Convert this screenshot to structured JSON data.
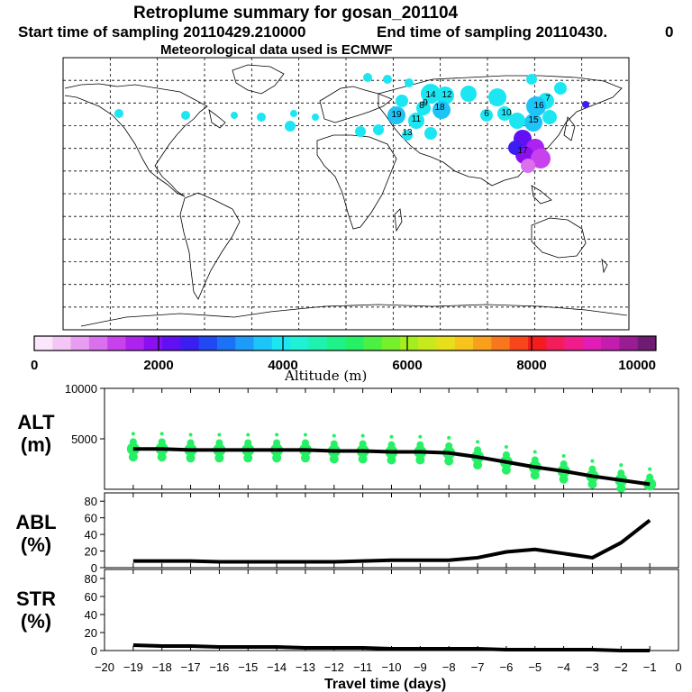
{
  "header": {
    "title": "Retroplume summary for gosan_201104",
    "start_label": "Start time of sampling 20110429.210000",
    "end_label": "End time of sampling 20110430.",
    "end_value": "0",
    "met_label": "Meteorological data used is ECMWF"
  },
  "colorbar": {
    "label": "Altitude (m)",
    "ticks": [
      "0",
      "2000",
      "4000",
      "6000",
      "8000",
      "10000"
    ],
    "colors": [
      "#fbe6fb",
      "#f3c6f6",
      "#e89cf2",
      "#db70ee",
      "#c742ec",
      "#ac22ef",
      "#8a10f1",
      "#6010f2",
      "#3b1ef2",
      "#2248f4",
      "#1c72f6",
      "#1c9cf8",
      "#1cc4f8",
      "#1ce6f2",
      "#1ef2d4",
      "#1ef2ae",
      "#1ef288",
      "#26f064",
      "#4af042",
      "#76f02a",
      "#a2ee1e",
      "#c8ea1c",
      "#e8de1c",
      "#f6c41c",
      "#f8a01c",
      "#f8761c",
      "#f8461c",
      "#f41c1c",
      "#f41c5a",
      "#f01c8c",
      "#e21cb6",
      "#c41cae",
      "#9a1c94",
      "#6e1c72"
    ]
  },
  "chart_data": [
    {
      "type": "line",
      "name": "ALT",
      "ylabel_1": "ALT",
      "ylabel_2": "(m)",
      "ylim": [
        0,
        10000
      ],
      "yticks": [
        "10000",
        "5000"
      ],
      "x": [
        -19,
        -18,
        -17,
        -16,
        -15,
        -14,
        -13,
        -12,
        -11,
        -10,
        -9,
        -8,
        -7,
        -6,
        -5,
        -4,
        -3,
        -2,
        -1
      ],
      "values": [
        4000,
        4000,
        3900,
        3900,
        3900,
        3900,
        3900,
        3800,
        3800,
        3700,
        3700,
        3600,
        3200,
        2700,
        2200,
        1800,
        1300,
        900,
        500
      ]
    },
    {
      "type": "line",
      "name": "ABL",
      "ylabel_1": "ABL",
      "ylabel_2": "(%)",
      "ylim": [
        0,
        90
      ],
      "yticks": [
        "80",
        "60",
        "40",
        "20",
        "0"
      ],
      "x": [
        -19,
        -18,
        -17,
        -16,
        -15,
        -14,
        -13,
        -12,
        -11,
        -10,
        -9,
        -8,
        -7,
        -6,
        -5,
        -4,
        -3,
        -2,
        -1
      ],
      "values": [
        8,
        8,
        8,
        7,
        7,
        7,
        7,
        7,
        8,
        9,
        9,
        9,
        12,
        19,
        22,
        17,
        12,
        30,
        57
      ]
    },
    {
      "type": "line",
      "name": "STR",
      "ylabel_1": "STR",
      "ylabel_2": "(%)",
      "ylim": [
        0,
        90
      ],
      "yticks": [
        "80",
        "60",
        "40",
        "20",
        "0"
      ],
      "x": [
        -19,
        -18,
        -17,
        -16,
        -15,
        -14,
        -13,
        -12,
        -11,
        -10,
        -9,
        -8,
        -7,
        -6,
        -5,
        -4,
        -3,
        -2,
        -1
      ],
      "values": [
        6,
        5,
        5,
        4,
        4,
        4,
        3,
        3,
        3,
        2,
        2,
        2,
        2,
        1,
        1,
        1,
        1,
        0,
        0
      ]
    }
  ],
  "xaxis": {
    "label": "Travel time (days)",
    "ticks": [
      "−20",
      "−19",
      "−18",
      "−17",
      "−16",
      "−15",
      "−14",
      "−13",
      "−12",
      "−11",
      "−10",
      "−9",
      "−8",
      "−7",
      "−6",
      "−5",
      "−4",
      "−3",
      "−2",
      "−1",
      "0"
    ]
  },
  "map_labels": [
    "14",
    "12",
    "18",
    "16",
    "7",
    "8",
    "11",
    "13",
    "9",
    "6",
    "19",
    "17",
    "15",
    "10"
  ]
}
